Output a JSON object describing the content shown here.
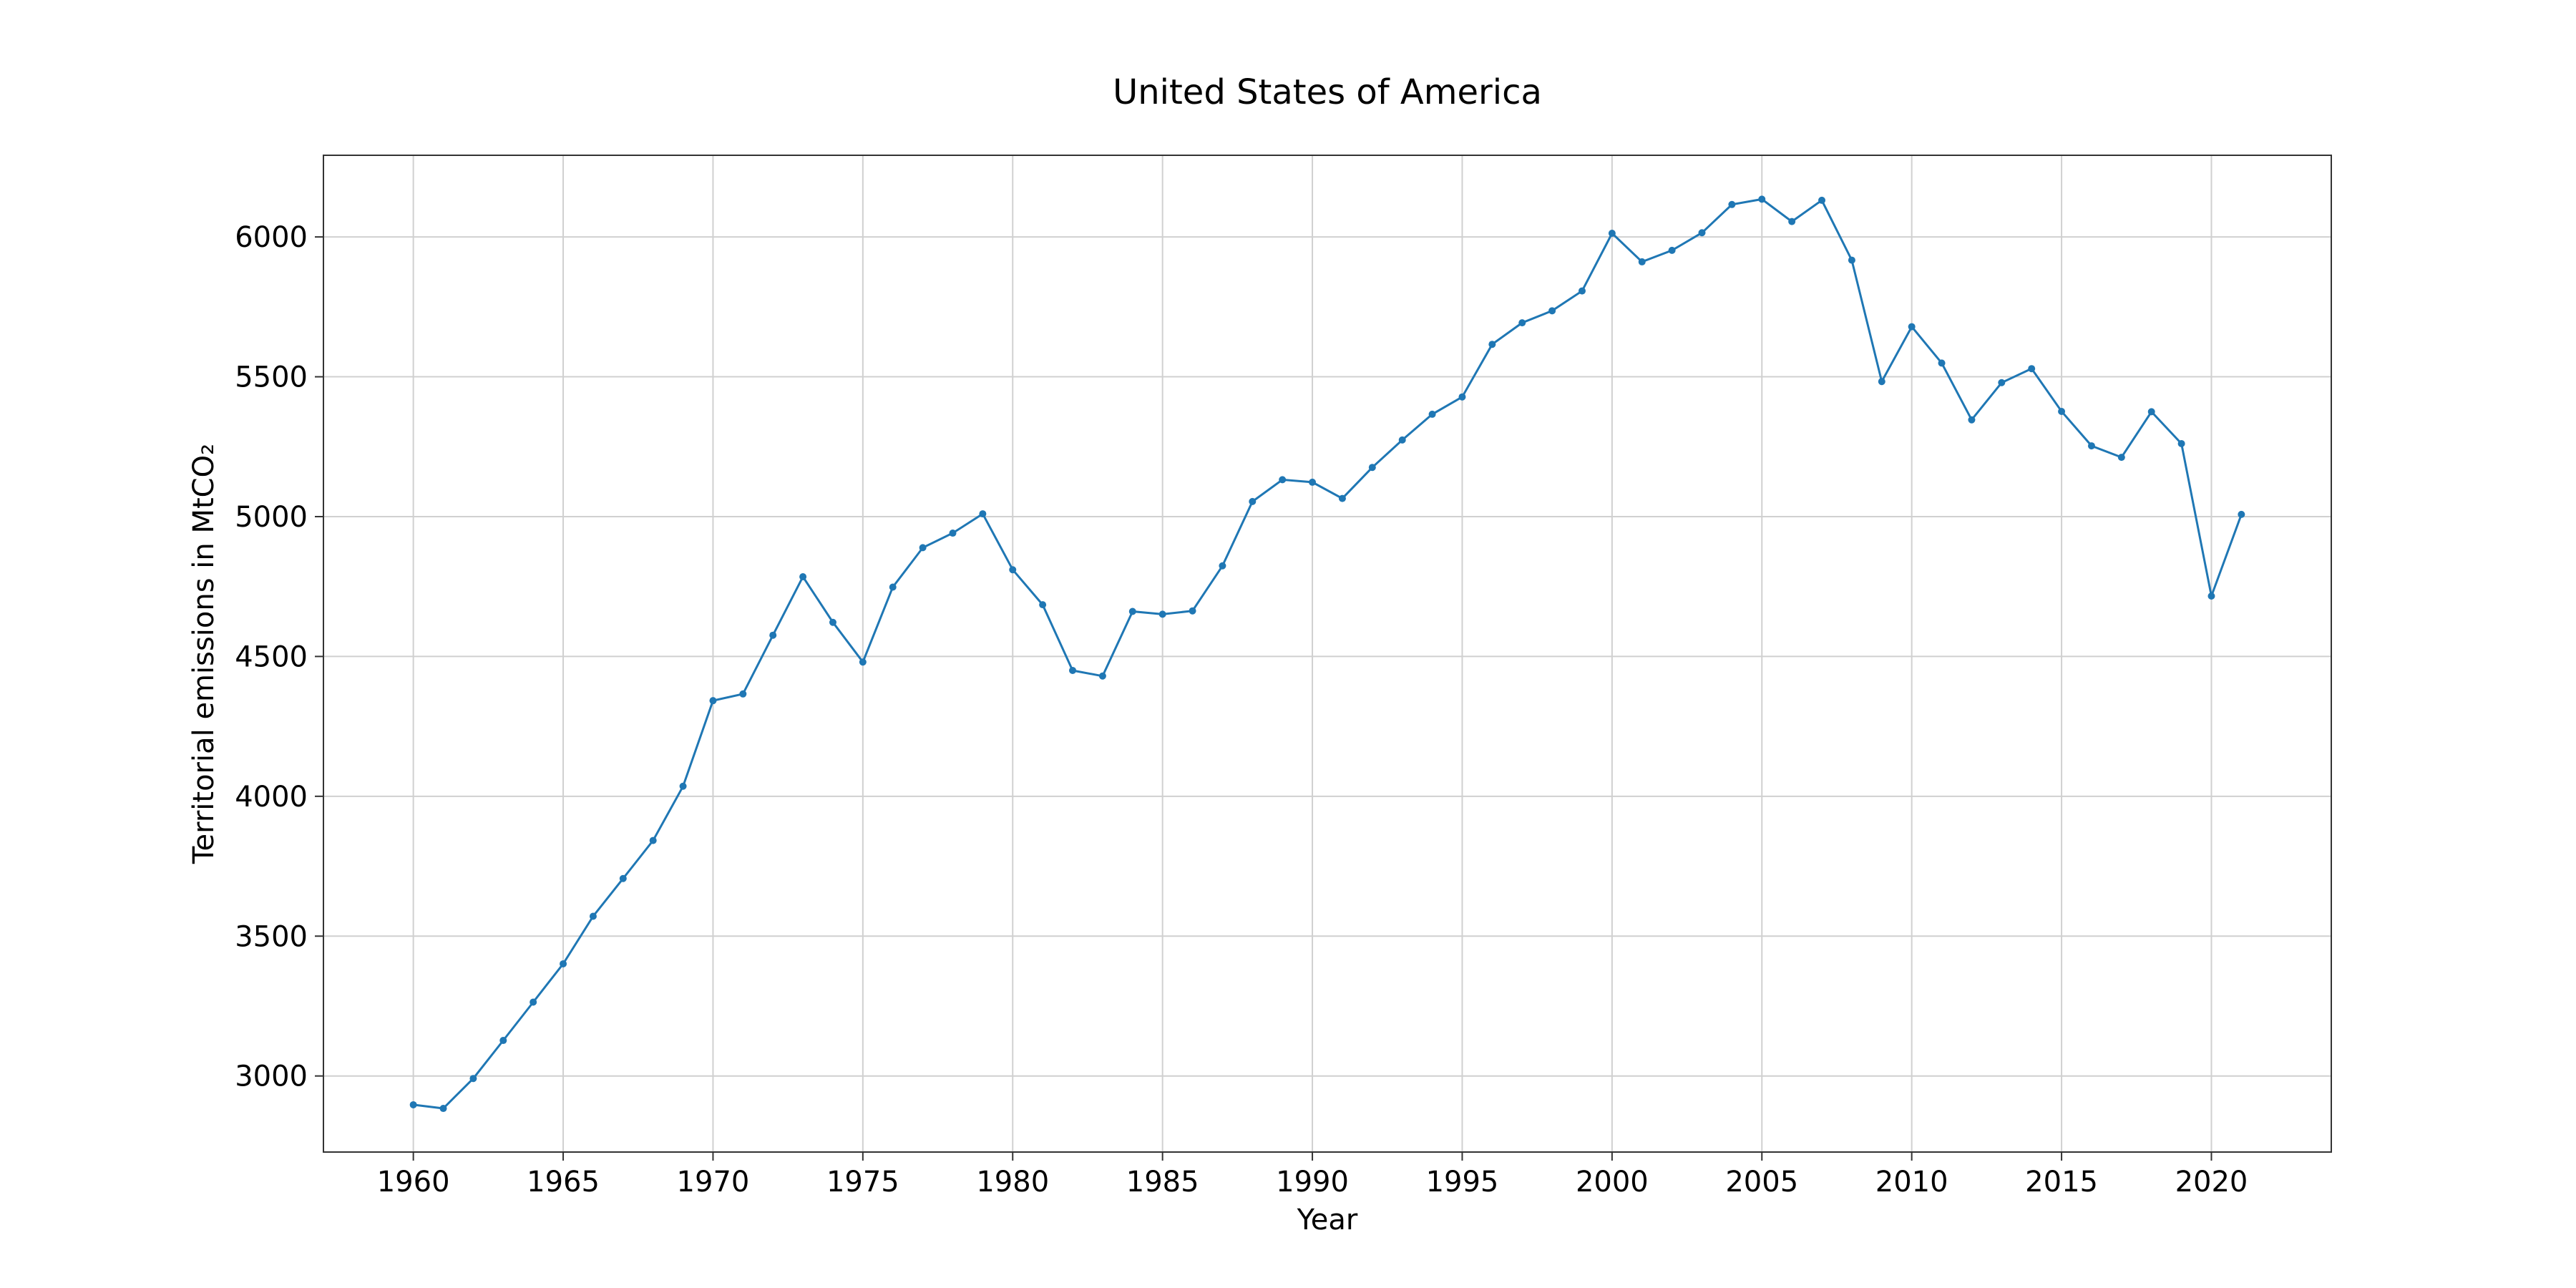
{
  "chart_data": {
    "type": "line",
    "title": "United States of America",
    "xlabel": "Year",
    "ylabel": "Territorial emissions in MtCO₂",
    "xlim": [
      1957,
      2024
    ],
    "ylim": [
      2728,
      6292
    ],
    "x_ticks": [
      1960,
      1965,
      1970,
      1975,
      1980,
      1985,
      1990,
      1995,
      2000,
      2005,
      2010,
      2015,
      2020
    ],
    "y_ticks": [
      3000,
      3500,
      4000,
      4500,
      5000,
      5500,
      6000
    ],
    "grid": true,
    "legend": "none",
    "line_color": "#1f77b4",
    "x": [
      1960,
      1961,
      1962,
      1963,
      1964,
      1965,
      1966,
      1967,
      1968,
      1969,
      1970,
      1971,
      1972,
      1973,
      1974,
      1975,
      1976,
      1977,
      1978,
      1979,
      1980,
      1981,
      1982,
      1983,
      1984,
      1985,
      1986,
      1987,
      1988,
      1989,
      1990,
      1991,
      1992,
      1993,
      1994,
      1995,
      1996,
      1997,
      1998,
      1999,
      2000,
      2001,
      2002,
      2003,
      2004,
      2005,
      2006,
      2007,
      2008,
      2009,
      2010,
      2011,
      2012,
      2013,
      2014,
      2015,
      2016,
      2017,
      2018,
      2019,
      2020,
      2021
    ],
    "values": [
      2897,
      2884,
      2991,
      3127,
      3264,
      3401,
      3571,
      3706,
      3842,
      4036,
      4342,
      4366,
      4576,
      4785,
      4622,
      4480,
      4748,
      4889,
      4941,
      5010,
      4810,
      4685,
      4450,
      4430,
      4661,
      4651,
      4663,
      4824,
      5054,
      5132,
      5123,
      5065,
      5176,
      5274,
      5366,
      5428,
      5616,
      5693,
      5736,
      5807,
      6013,
      5911,
      5952,
      6015,
      6116,
      6135,
      6055,
      6131,
      5917,
      5483,
      5679,
      5549,
      5346,
      5479,
      5529,
      5376,
      5253,
      5212,
      5375,
      5261,
      4716,
      5008
    ]
  }
}
